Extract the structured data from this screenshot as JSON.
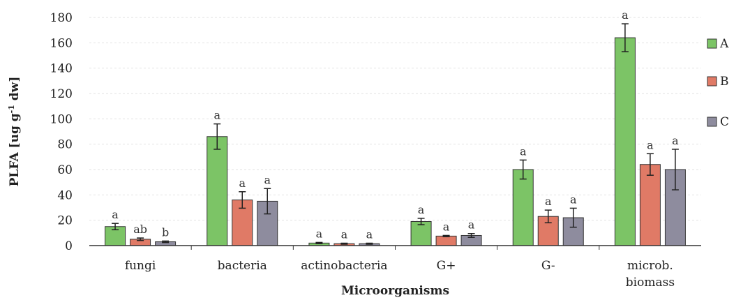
{
  "chart_data": {
    "type": "bar",
    "ylabel": "PLFA [ug g⁻¹ dw]",
    "xlabel": "Microorganisms",
    "ylim": [
      0,
      180
    ],
    "yticks": [
      0,
      20,
      40,
      60,
      80,
      100,
      120,
      140,
      160,
      180
    ],
    "grid": "horizontal dashed",
    "legend_position": "right",
    "categories": [
      [
        "fungi"
      ],
      [
        "bacteria"
      ],
      [
        "actinobacteria"
      ],
      [
        "G+"
      ],
      [
        "G-"
      ],
      [
        "microb.",
        "biomass"
      ]
    ],
    "series": [
      {
        "name": "A",
        "color": "#7cc466",
        "values": [
          15,
          86,
          2,
          19,
          60,
          164
        ],
        "errors": [
          2.5,
          10,
          0.5,
          2.5,
          7.5,
          11
        ],
        "letters": [
          "a",
          "a",
          "a",
          "a",
          "a",
          "a"
        ]
      },
      {
        "name": "B",
        "color": "#e07a66",
        "values": [
          5,
          36,
          1.5,
          7.5,
          23,
          64
        ],
        "errors": [
          1,
          6.5,
          0.4,
          0.5,
          5,
          8.5
        ],
        "letters": [
          "ab",
          "a",
          "a",
          "a",
          "a",
          "a"
        ]
      },
      {
        "name": "C",
        "color": "#8e8c9e",
        "values": [
          3,
          35,
          1.5,
          8,
          22,
          60
        ],
        "errors": [
          0.6,
          10,
          0.4,
          1.5,
          7.5,
          16
        ],
        "letters": [
          "b",
          "a",
          "a",
          "a",
          "a",
          "a"
        ]
      }
    ]
  }
}
